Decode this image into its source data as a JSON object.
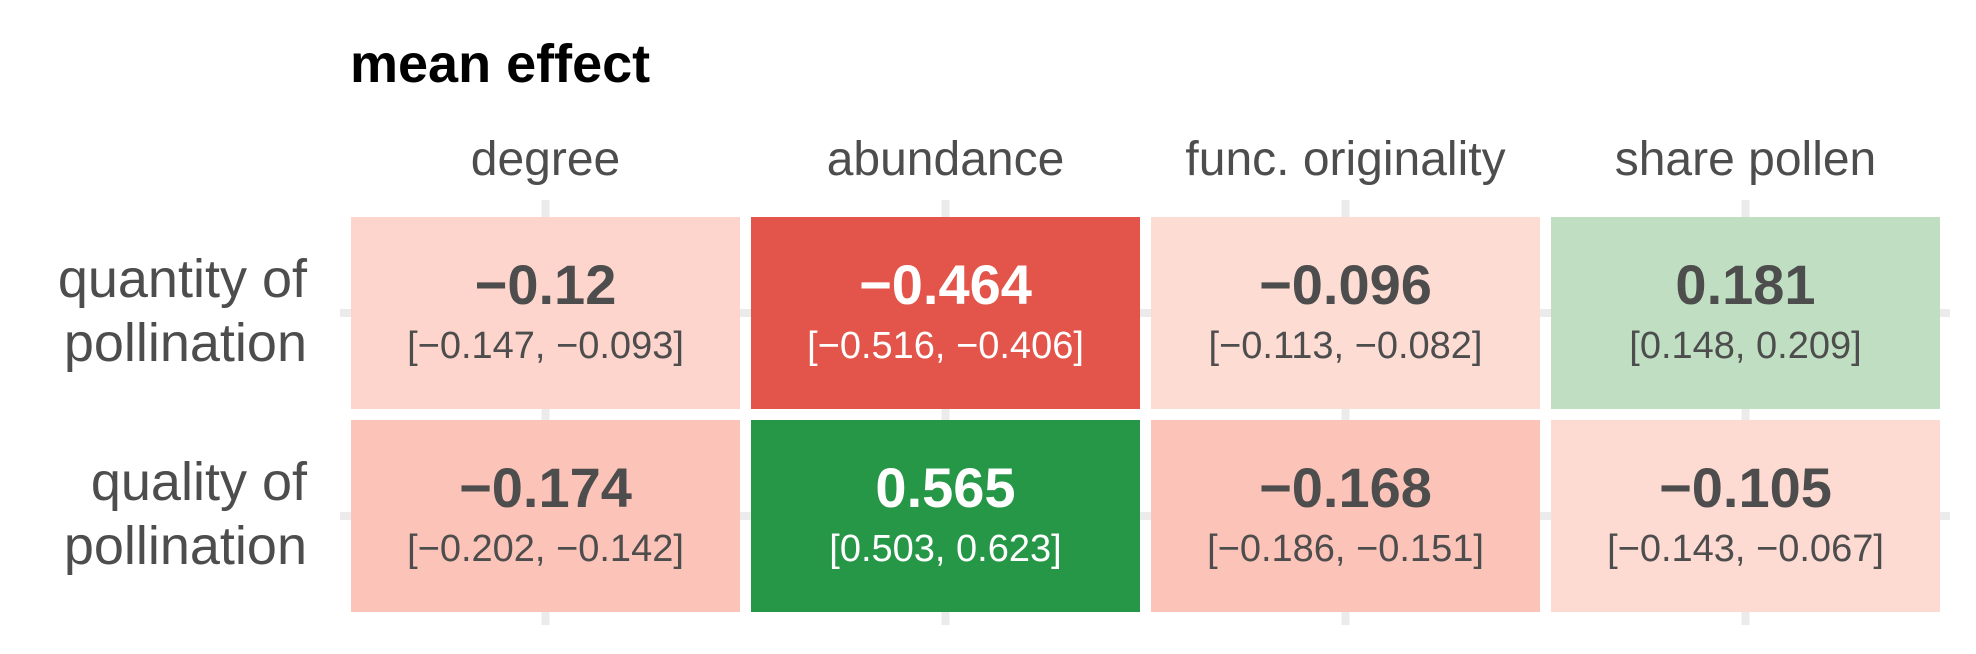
{
  "chart_data": {
    "type": "heatmap",
    "title": "mean effect",
    "columns": [
      "degree",
      "abundance",
      "func. originality",
      "share pollen"
    ],
    "rows": [
      {
        "label_lines": [
          "quantity of",
          "pollination"
        ],
        "cells": [
          {
            "value": "−0.12",
            "ci": "[−0.147, −0.093]",
            "fill": "#fdd5cd",
            "text_color": "#4d4d4d"
          },
          {
            "value": "−0.464",
            "ci": "[−0.516, −0.406]",
            "fill": "#e3554a",
            "text_color": "#ffffff"
          },
          {
            "value": "−0.096",
            "ci": "[−0.113, −0.082]",
            "fill": "#fddcd4",
            "text_color": "#4d4d4d"
          },
          {
            "value": "0.181",
            "ci": "[0.148, 0.209]",
            "fill": "#c0dfc2",
            "text_color": "#4d4d4d"
          }
        ]
      },
      {
        "label_lines": [
          "quality of",
          "pollination"
        ],
        "cells": [
          {
            "value": "−0.174",
            "ci": "[−0.202, −0.142]",
            "fill": "#fcc3b8",
            "text_color": "#4d4d4d"
          },
          {
            "value": "0.565",
            "ci": "[0.503, 0.623]",
            "fill": "#269747",
            "text_color": "#ffffff"
          },
          {
            "value": "−0.168",
            "ci": "[−0.186, −0.151]",
            "fill": "#fcc3b8",
            "text_color": "#4d4d4d"
          },
          {
            "value": "−0.105",
            "ci": "[−0.143, −0.067]",
            "fill": "#fddad2",
            "text_color": "#4d4d4d"
          }
        ]
      }
    ],
    "grid": true
  }
}
